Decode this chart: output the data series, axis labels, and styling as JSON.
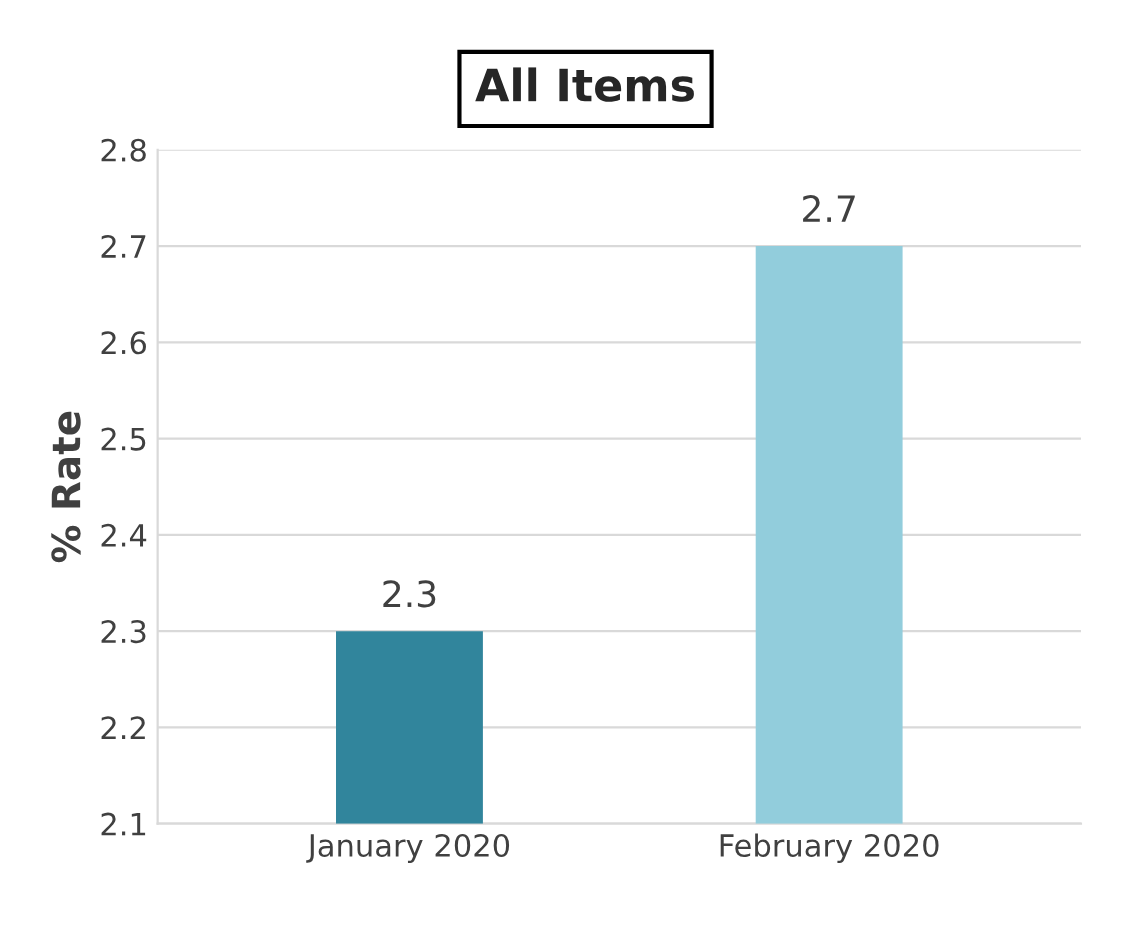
{
  "chart_data": {
    "type": "bar",
    "title": "All Items",
    "ylabel": "% Rate",
    "categories": [
      "January 2020",
      "February 2020"
    ],
    "values": [
      2.3,
      2.7
    ],
    "colors": [
      "#31859c",
      "#92cddc"
    ],
    "ylim": [
      2.1,
      2.8
    ],
    "yticks": [
      2.1,
      2.2,
      2.3,
      2.4,
      2.5,
      2.6,
      2.7,
      2.8
    ],
    "grid": "y",
    "data_labels": true
  }
}
